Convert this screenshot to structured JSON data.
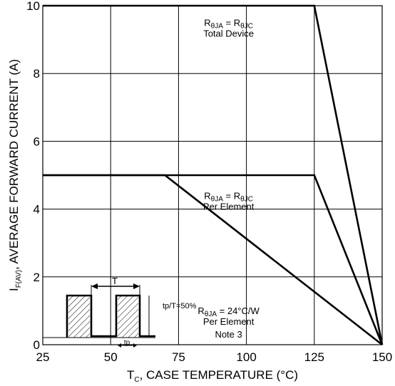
{
  "chart_data": {
    "type": "line",
    "xlabel": {
      "main": "T",
      "sub": "C",
      "rest": ", CASE TEMPERATURE (°C)"
    },
    "ylabel": {
      "main": "I",
      "sub": "F(AV)",
      "rest": ", AVERAGE FORWARD CURRENT (A)"
    },
    "xlim": [
      25,
      150
    ],
    "ylim": [
      0,
      10
    ],
    "xticks": [
      25,
      50,
      75,
      100,
      125,
      150
    ],
    "yticks": [
      0,
      2,
      4,
      6,
      8,
      10
    ],
    "grid": true,
    "series": [
      {
        "x": [
          25,
          125,
          150
        ],
        "y": [
          10,
          10,
          0
        ]
      },
      {
        "x": [
          25,
          125,
          150
        ],
        "y": [
          5,
          5,
          0
        ]
      },
      {
        "x": [
          25,
          70,
          150
        ],
        "y": [
          5,
          5,
          0
        ]
      }
    ],
    "annotations": [
      {
        "sym": "R",
        "sub1": "θJA",
        "mid": " = R",
        "sub2": "θJC",
        "line2": "Total Device",
        "at": [
          100,
          9.4
        ]
      },
      {
        "sym": "R",
        "sub1": "θJA",
        "mid": " = R",
        "sub2": "θJC",
        "line2": "Per Element",
        "at": [
          100,
          4.3
        ]
      },
      {
        "sym": "R",
        "sub1": "θJA",
        "mid": " = 24°C/W",
        "sub2": "",
        "line2": "Per Element",
        "line3": "Note 3",
        "at": [
          100,
          0.9
        ]
      }
    ],
    "inset": {
      "period_label": "T",
      "pulse_label": "tp",
      "duty_label": "tp/T=50%"
    }
  }
}
